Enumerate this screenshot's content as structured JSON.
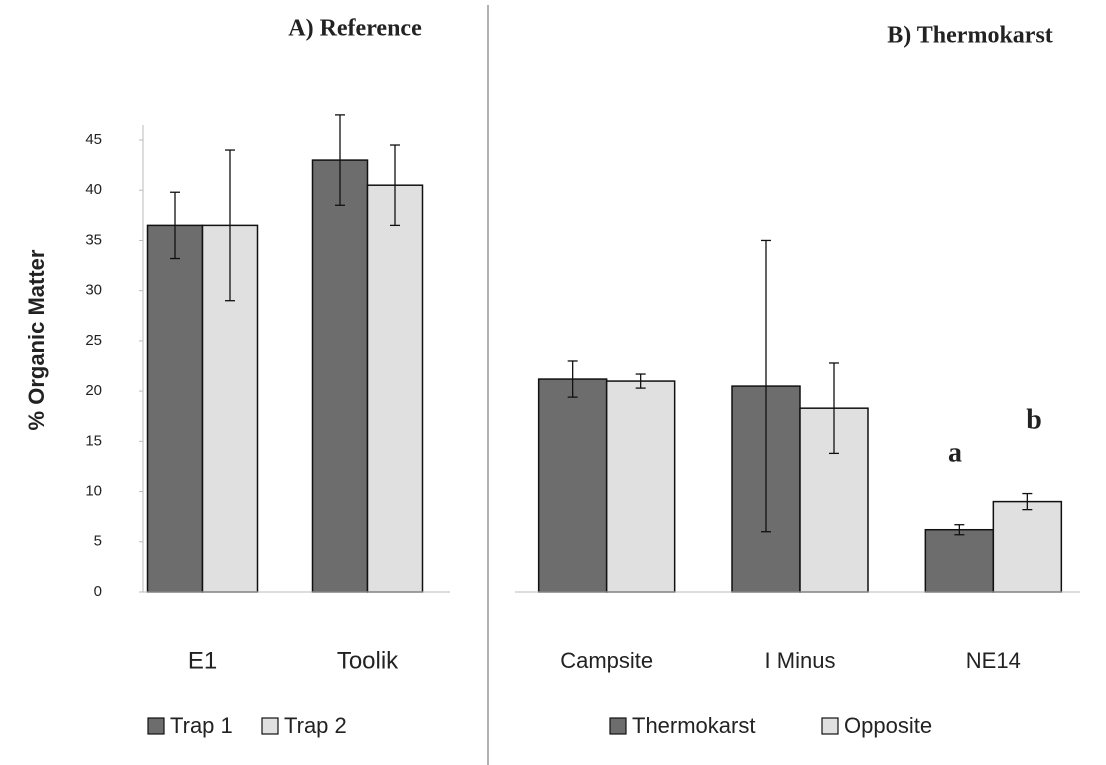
{
  "chart_data": [
    {
      "type": "bar",
      "title": "A) Reference",
      "y_label": "% Organic Matter",
      "categories": [
        "E1",
        "Toolik"
      ],
      "series": [
        {
          "name": "Trap 1",
          "color": "#6d6d6d",
          "values": [
            36.5,
            43
          ],
          "errors": [
            3.3,
            4.5
          ]
        },
        {
          "name": "Trap 2",
          "color": "#e0e0e0",
          "values": [
            36.5,
            40.5
          ],
          "errors": [
            7.5,
            4
          ]
        }
      ],
      "ylim": [
        0,
        45
      ],
      "yticks": [
        0,
        5,
        10,
        15,
        20,
        25,
        30,
        35,
        40,
        45
      ]
    },
    {
      "type": "bar",
      "title": "B) Thermokarst",
      "categories": [
        "Campsite",
        "I Minus",
        "NE14"
      ],
      "series": [
        {
          "name": "Thermokarst",
          "color": "#6d6d6d",
          "values": [
            21.2,
            20.5,
            6.2
          ],
          "errors": [
            1.8,
            14.5,
            0.5
          ]
        },
        {
          "name": "Opposite",
          "color": "#e0e0e0",
          "values": [
            21,
            18.3,
            9
          ],
          "errors": [
            0.7,
            4.5,
            0.8
          ]
        }
      ],
      "annotations": [
        "a",
        "b"
      ],
      "ylim": [
        0,
        45
      ]
    }
  ]
}
